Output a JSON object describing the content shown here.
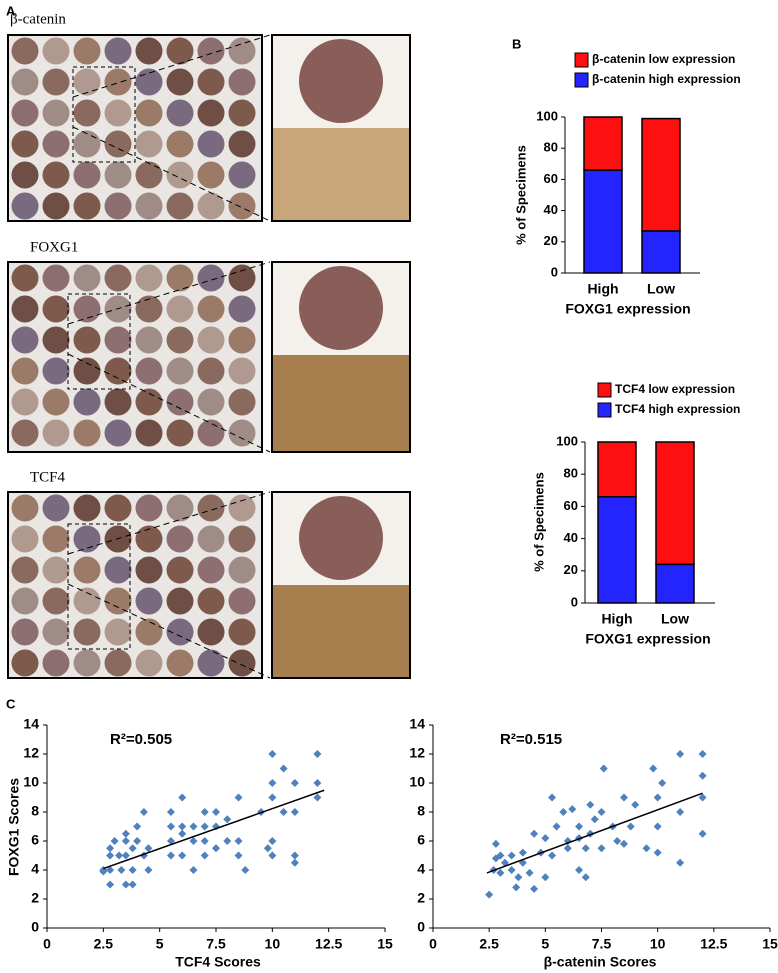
{
  "panels": {
    "a": "A",
    "b": "B",
    "c": "C"
  },
  "images": [
    {
      "label": "β-catenin"
    },
    {
      "label": "FOXG1"
    },
    {
      "label": "TCF4"
    }
  ],
  "chart_data": [
    {
      "type": "bar",
      "stacked": true,
      "categories": [
        "High",
        "Low"
      ],
      "series": [
        {
          "name": "β-catenin high expression",
          "color": "#2424ff",
          "values": [
            66,
            27
          ]
        },
        {
          "name": "β-catenin low expression",
          "color": "#ff1010",
          "values": [
            34,
            72
          ]
        }
      ],
      "ylim": [
        0,
        100
      ],
      "yticks": [
        0,
        20,
        40,
        60,
        80,
        100
      ],
      "xlabel": "FOXG1 expression",
      "ylabel": "% of Specimens"
    },
    {
      "type": "bar",
      "stacked": true,
      "categories": [
        "High",
        "Low"
      ],
      "series": [
        {
          "name": "TCF4 high expression",
          "color": "#2424ff",
          "values": [
            66,
            24
          ]
        },
        {
          "name": "TCF4 low expression",
          "color": "#ff1010",
          "values": [
            34,
            76
          ]
        }
      ],
      "ylim": [
        0,
        100
      ],
      "yticks": [
        0,
        20,
        40,
        60,
        80,
        100
      ],
      "xlabel": "FOXG1 expression",
      "ylabel": "% of Specimens"
    },
    {
      "type": "scatter",
      "annotation": "R²=0.505",
      "color": "#4f81bd",
      "x": [
        2.5,
        2.5,
        2.8,
        2.8,
        2.8,
        2.8,
        3,
        3.2,
        3.3,
        3.5,
        3.5,
        3.5,
        3.5,
        3.8,
        3.8,
        3.8,
        4,
        4,
        4.3,
        4.3,
        4.5,
        4.5,
        5.5,
        5.5,
        5.5,
        5.5,
        6,
        6,
        6,
        6,
        6.5,
        6.5,
        6.5,
        7,
        7,
        7,
        7,
        7.5,
        7.5,
        7.5,
        8,
        8,
        8.5,
        8.5,
        8.5,
        8.8,
        9.5,
        9.8,
        10,
        10,
        10,
        10,
        10,
        10.5,
        10.5,
        11,
        11,
        11,
        11,
        12,
        12,
        12
      ],
      "y": [
        4,
        3.9,
        3,
        4,
        5,
        5.5,
        6,
        5,
        4,
        3,
        5,
        6,
        6.5,
        3,
        4,
        5.5,
        6,
        7,
        5,
        8,
        4,
        5.5,
        5,
        6,
        7,
        8,
        5,
        6.5,
        7,
        9,
        6,
        7,
        4,
        5,
        6,
        7,
        8,
        5.5,
        7,
        8,
        6,
        7.5,
        5,
        6,
        9,
        4,
        8,
        5.5,
        10,
        12,
        9,
        6,
        5,
        11,
        8,
        5,
        4.5,
        8,
        10,
        12,
        9,
        10
      ],
      "trendline": {
        "x": [
          2.5,
          12.3
        ],
        "y": [
          4.1,
          9.5
        ]
      },
      "xlim": [
        0,
        15
      ],
      "xticks": [
        0,
        2.5,
        5,
        7.5,
        10,
        12.5,
        15
      ],
      "ylim": [
        0,
        14
      ],
      "yticks": [
        0,
        2,
        4,
        6,
        8,
        10,
        12,
        14
      ],
      "xlabel": "TCF4 Scores",
      "ylabel": "FOXG1 Scores"
    },
    {
      "type": "scatter",
      "annotation": "R²=0.515",
      "color": "#4f81bd",
      "x": [
        2.5,
        2.7,
        2.8,
        2.8,
        3,
        3,
        3.2,
        3.5,
        3.5,
        3.7,
        3.8,
        4,
        4,
        4.3,
        4.5,
        4.5,
        4.8,
        5,
        5,
        5.3,
        5.3,
        5.5,
        5.8,
        6,
        6,
        6.2,
        6.5,
        6.5,
        6.5,
        6.8,
        6.8,
        7,
        7,
        7.2,
        7.5,
        7.5,
        7.6,
        8,
        8.2,
        8.5,
        8.5,
        8.8,
        9,
        9.5,
        9.8,
        10,
        10,
        10,
        10.2,
        11,
        11,
        11,
        12,
        12,
        12,
        12
      ],
      "y": [
        2.3,
        4,
        4.8,
        5.8,
        3.8,
        5,
        4.5,
        4,
        5,
        2.8,
        3.5,
        4.5,
        5.2,
        3.8,
        6.5,
        2.7,
        5.2,
        3.5,
        6.2,
        5,
        9,
        7,
        8,
        5.5,
        6,
        8.2,
        4,
        6.2,
        7,
        3.5,
        5.5,
        6.5,
        8.5,
        7.5,
        5.5,
        8,
        11,
        7,
        6,
        9,
        5.8,
        7,
        8.5,
        5.5,
        11,
        9,
        5.2,
        7,
        10,
        12,
        4.5,
        8,
        12,
        9,
        6.5,
        10.5
      ],
      "trendline": {
        "x": [
          2.4,
          12
        ],
        "y": [
          3.8,
          9.3
        ]
      },
      "xlim": [
        0,
        15
      ],
      "xticks": [
        0,
        2.5,
        5,
        7.5,
        10,
        12.5,
        15
      ],
      "ylim": [
        0,
        14
      ],
      "yticks": [
        0,
        2,
        4,
        6,
        8,
        10,
        12,
        14
      ],
      "xlabel": "β-catenin Scores"
    }
  ]
}
